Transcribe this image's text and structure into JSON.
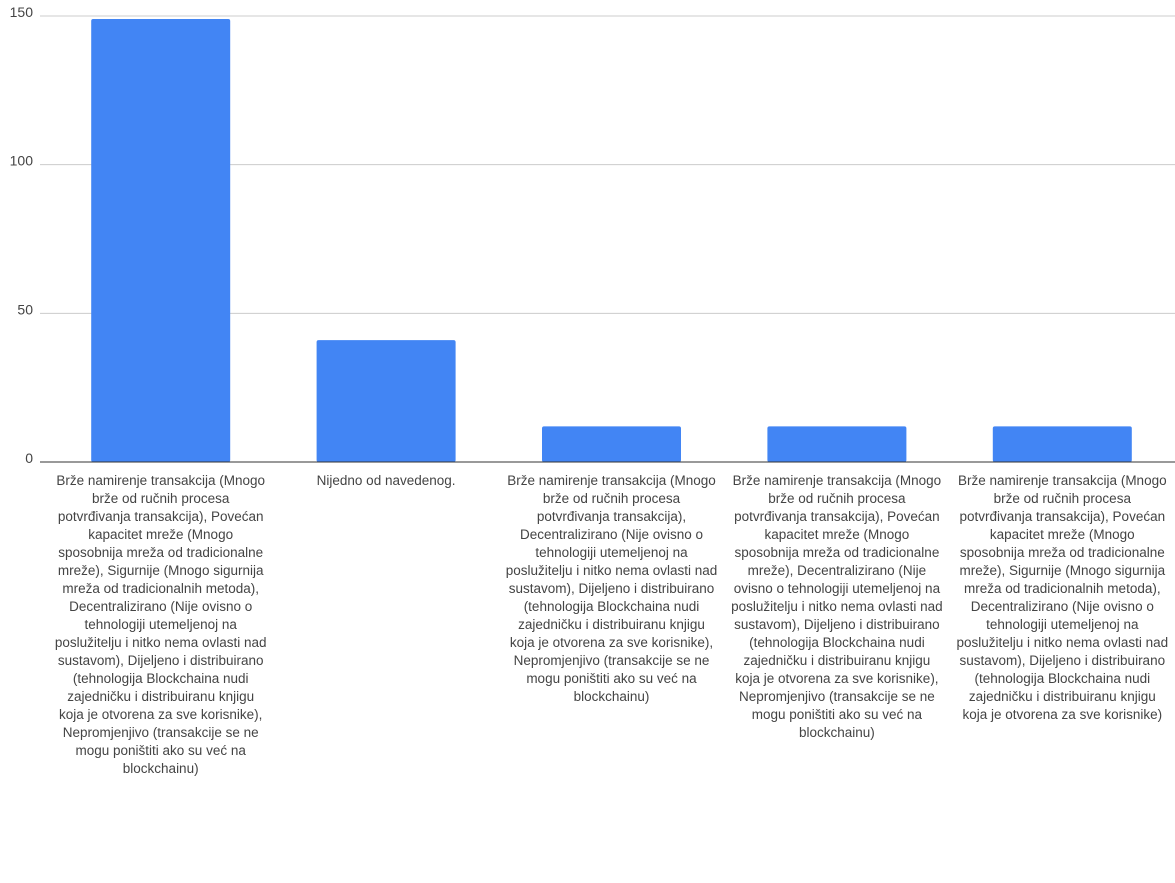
{
  "chart_data": {
    "type": "bar",
    "categories": [
      "Brže namirenje transakcija (Mnogo brže od ručnih procesa potvrđivanja transakcija), Povećan kapacitet mreže (Mnogo sposobnija mreža od tradicionalne mreže), Sigurnije (Mnogo sigurnija mreža od tradicionalnih metoda), Decentralizirano (Nije ovisno o tehnologiji utemeljenoj na poslužitelju i nitko nema ovlasti nad sustavom), Dijeljeno i distribuirano (tehnologija Blockchaina nudi zajedničku i distribuiranu knjigu koja je otvorena za sve korisnike), Nepromjenjivo (transakcije se ne mogu poništiti ako su već na blockchainu)",
      "Nijedno od navedenog.",
      "Brže namirenje transakcija (Mnogo brže od ručnih procesa potvrđivanja transakcija), Decentralizirano (Nije ovisno o tehnologiji utemeljenoj na poslužitelju i nitko nema ovlasti nad sustavom), Dijeljeno i distribuirano (tehnologija Blockchaina nudi zajedničku i distribuiranu knjigu koja je otvorena za sve korisnike), Nepromjenjivo (transakcije se ne mogu poništiti ako su već na blockchainu)",
      "Brže namirenje transakcija (Mnogo brže od ručnih procesa potvrđivanja transakcija), Povećan kapacitet mreže (Mnogo sposobnija mreža od tradicionalne mreže), Decentralizirano (Nije ovisno o tehnologiji utemeljenoj na poslužitelju i nitko nema ovlasti nad sustavom), Dijeljeno i distribuirano (tehnologija Blockchaina nudi zajedničku i distribuiranu knjigu koja je otvorena za sve korisnike), Nepromjenjivo (transakcije se ne mogu poništiti ako su već na blockchainu)",
      "Brže namirenje transakcija (Mnogo brže od ručnih procesa potvrđivanja transakcija), Povećan kapacitet mreže (Mnogo sposobnija mreža od tradicionalne mreže), Sigurnije (Mnogo sigurnija mreža od tradicionalnih metoda), Decentralizirano (Nije ovisno o tehnologiji utemeljenoj na poslužitelju i nitko nema ovlasti nad sustavom), Dijeljeno i distribuirano (tehnologija Blockchaina nudi zajedničku i distribuiranu knjigu koja je otvorena za sve korisnike)"
    ],
    "values": [
      149,
      41,
      12,
      12,
      12
    ],
    "yticks": [
      "0",
      "50",
      "100",
      "150"
    ],
    "ylim": [
      0,
      150
    ],
    "grid": true,
    "bar_color": "#4285f4",
    "grid_color": "#cccccc",
    "axis_color": "#333333",
    "text_color": "#444444"
  }
}
